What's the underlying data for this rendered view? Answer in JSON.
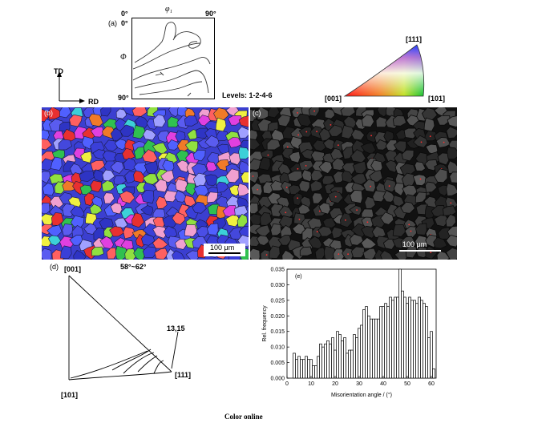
{
  "panel_a": {
    "label": "(a)",
    "phi1_symbol": "φ₁",
    "Phi_symbol": "Φ",
    "tick_top_left": "0°",
    "tick_top_right": "90°",
    "tick_left_top": "0°",
    "tick_left_bottom": "90°",
    "levels": "Levels: 1-2-4-6"
  },
  "axes": {
    "td": "TD",
    "rd": "RD"
  },
  "ipf_key": {
    "top": "[111]",
    "left": "[001]",
    "right": "[101]"
  },
  "panel_b": {
    "label": "(b)",
    "scale_bar": "100 μm"
  },
  "panel_c": {
    "label": "(c)",
    "scale_bar": "100 μm"
  },
  "panel_d": {
    "label": "(d)",
    "corner_001": "[001]",
    "corner_101": "[101]",
    "corner_111": "[111]",
    "title": "58°~62°",
    "annotation": "13,15"
  },
  "caption": "Color online",
  "chart_data": {
    "type": "bar",
    "title": "(e)",
    "xlabel": "Misorientation angle / (°)",
    "ylabel": "Rel. frequency",
    "xlim": [
      0,
      62
    ],
    "ylim": [
      0,
      0.035
    ],
    "xticks": [
      0,
      10,
      20,
      30,
      40,
      50,
      60
    ],
    "yticks": [
      "0.000",
      "0.005",
      "0.010",
      "0.015",
      "0.020",
      "0.025",
      "0.030",
      "0.035"
    ],
    "bin_width": 1,
    "x": [
      3,
      4,
      5,
      6,
      7,
      8,
      9,
      10,
      11,
      12,
      13,
      14,
      15,
      16,
      17,
      18,
      19,
      20,
      21,
      22,
      23,
      24,
      25,
      26,
      27,
      28,
      29,
      30,
      31,
      32,
      33,
      34,
      35,
      36,
      37,
      38,
      39,
      40,
      41,
      42,
      43,
      44,
      45,
      46,
      47,
      48,
      49,
      50,
      51,
      52,
      53,
      54,
      55,
      56,
      57,
      58,
      59,
      60,
      61
    ],
    "values": [
      0.008,
      0.006,
      0.007,
      0.006,
      0.006,
      0.007,
      0.006,
      0.006,
      0.004,
      0.004,
      0.007,
      0.011,
      0.01,
      0.011,
      0.012,
      0.011,
      0.013,
      0.009,
      0.015,
      0.014,
      0.012,
      0.013,
      0.008,
      0.009,
      0.009,
      0.014,
      0.013,
      0.016,
      0.017,
      0.022,
      0.023,
      0.02,
      0.019,
      0.019,
      0.019,
      0.019,
      0.023,
      0.023,
      0.024,
      0.023,
      0.026,
      0.025,
      0.026,
      0.026,
      0.035,
      0.028,
      0.026,
      0.024,
      0.026,
      0.025,
      0.025,
      0.024,
      0.026,
      0.025,
      0.024,
      0.023,
      0.013,
      0.015,
      0.003
    ]
  }
}
